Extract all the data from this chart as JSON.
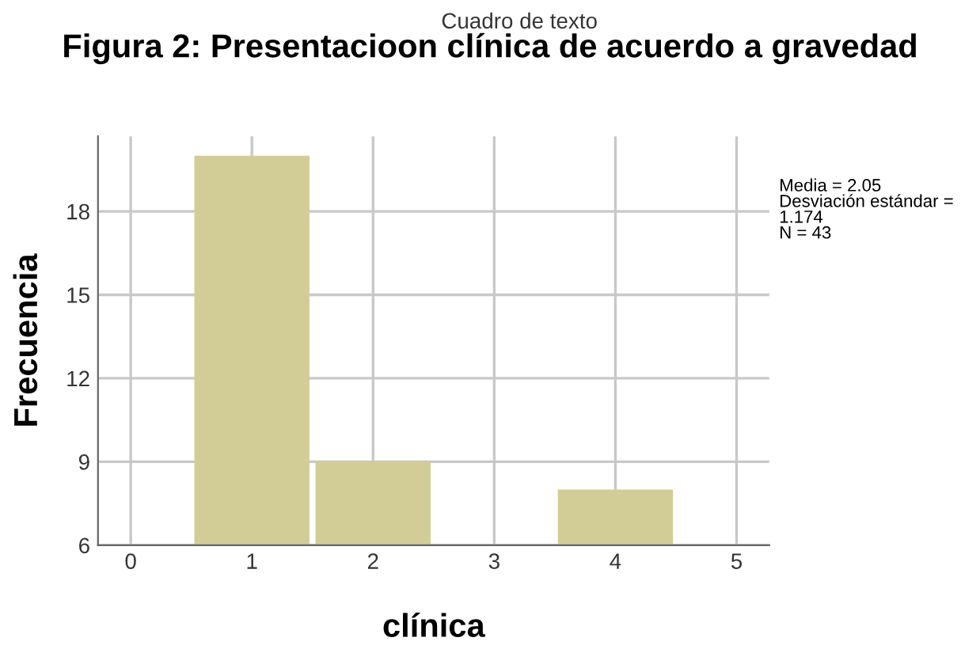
{
  "chart_data": {
    "type": "bar",
    "title": "Figura 2: Presentacioon clínica de acuerdo a gravedad",
    "xlabel": "clínica",
    "ylabel": "Frecuencia",
    "x": [
      1,
      2,
      3,
      4
    ],
    "series": [
      {
        "color": "#d2cd96",
        "values": [
          20,
          9,
          6,
          8
        ]
      }
    ],
    "xlim": [
      -0.27,
      5.27
    ],
    "xticks": [
      0,
      1,
      2,
      3,
      4,
      5
    ],
    "ylim": [
      6,
      20.7
    ],
    "yticks": [
      6,
      9,
      12,
      15,
      18
    ],
    "grid": true,
    "annotations": [
      "Cuadro de texto",
      "Media = 2.05\nDesviación estándar =\n1.174\nN = 43"
    ]
  }
}
